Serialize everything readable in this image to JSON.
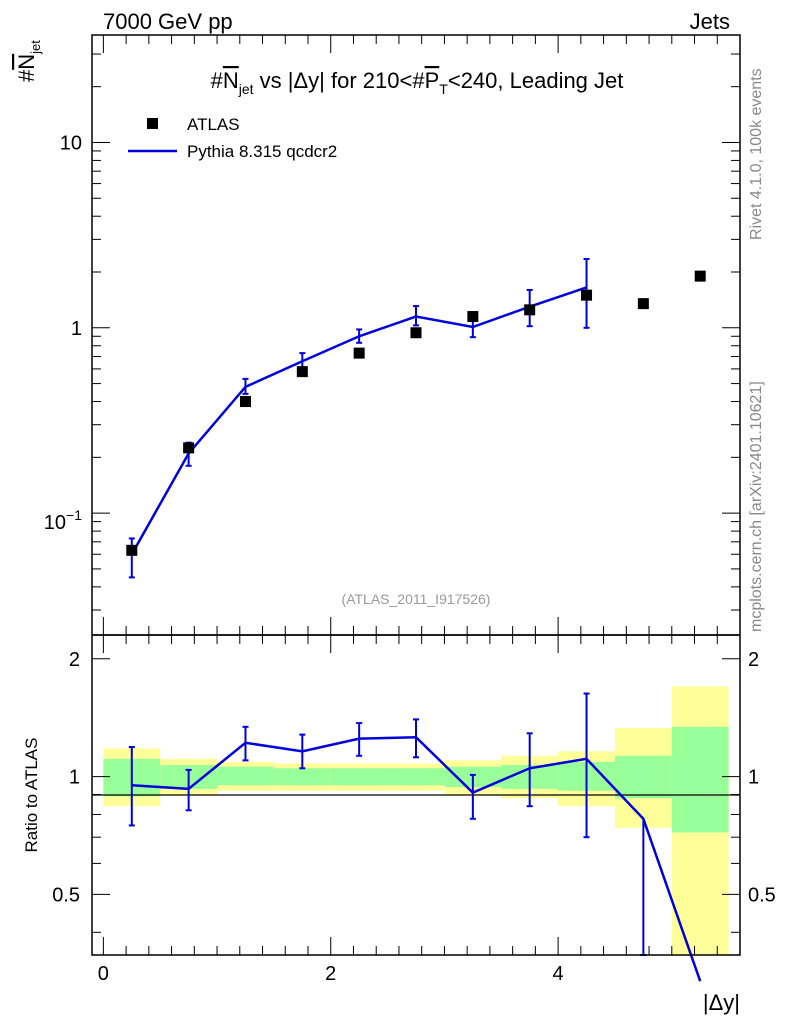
{
  "header": {
    "left": "7000 GeV pp",
    "right": "Jets"
  },
  "side": {
    "rivet": "Rivet 4.1.0,  100k events",
    "mcplots": "mcplots.cern.ch [arXiv:2401.10621]"
  },
  "main_plot": {
    "title": {
      "p1": "#",
      "p2": "N",
      "p3": "jet",
      "p4": " vs |Δy| for 210<#",
      "p5": "P",
      "p6": "T",
      "p7": "<240, Leading Jet"
    },
    "ylabel": {
      "hash": "#",
      "n": "N",
      "sub": "jet"
    },
    "watermark": "(ATLAS_2011_I917526)",
    "yticks": [
      {
        "label": "10",
        "sup": "−1"
      },
      {
        "label": "1",
        "sup": ""
      },
      {
        "label": "10",
        "sup": ""
      }
    ]
  },
  "ratio_plot": {
    "ylabel": "Ratio to ATLAS",
    "yticks": [
      "0.5",
      "1",
      "2"
    ]
  },
  "xaxis": {
    "label": "|Δy|",
    "ticks": [
      "0",
      "2",
      "4"
    ]
  },
  "colors": {
    "mc": "#0000dd",
    "band_inner": "#99ff99",
    "band_outer": "#ffff99"
  },
  "chart_data": {
    "type": "scatter",
    "title": "#N_jet vs |Δy| for 210<#P_T<240, Leading Jet",
    "xlabel": "|Δy|",
    "ylabel": "#N_jet",
    "xlim": [
      -0.1,
      5.6
    ],
    "ylim": [
      0.022,
      38
    ],
    "yscale": "log",
    "legend": {
      "position": "top-left",
      "entries": [
        "ATLAS",
        "Pythia 8.315 qcdcr2"
      ]
    },
    "series": [
      {
        "name": "ATLAS",
        "marker": "square",
        "x": [
          0.25,
          0.75,
          1.25,
          1.75,
          2.25,
          2.75,
          3.25,
          3.75,
          4.25,
          4.75,
          5.25
        ],
        "xerr": [
          0.25,
          0.25,
          0.25,
          0.25,
          0.25,
          0.25,
          0.25,
          0.25,
          0.25,
          0.25,
          0.25
        ],
        "y": [
          0.063,
          0.225,
          0.4,
          0.58,
          0.73,
          0.94,
          1.15,
          1.25,
          1.5,
          1.35,
          1.9
        ]
      },
      {
        "name": "Pythia 8.315 qcdcr2",
        "x": [
          0.25,
          0.75,
          1.25,
          1.75,
          2.25,
          2.75,
          3.25,
          3.75,
          4.25
        ],
        "y": [
          0.06,
          0.21,
          0.48,
          0.66,
          0.9,
          1.15,
          1.01,
          1.3,
          1.65
        ],
        "y_low": [
          0.045,
          0.18,
          0.44,
          0.61,
          0.83,
          1.03,
          0.89,
          1.02,
          1.0
        ],
        "y_high": [
          0.073,
          0.24,
          0.53,
          0.73,
          0.98,
          1.31,
          1.12,
          1.6,
          2.35
        ]
      }
    ],
    "ratio": {
      "ylabel": "Ratio to ATLAS",
      "ylim": [
        0.35,
        2.3
      ],
      "bins": [
        {
          "x0": 0.0,
          "x1": 0.5,
          "inner": [
            0.89,
            1.11
          ],
          "outer": [
            0.84,
            1.18
          ]
        },
        {
          "x0": 0.5,
          "x1": 1.0,
          "inner": [
            0.93,
            1.07
          ],
          "outer": [
            0.9,
            1.11
          ]
        },
        {
          "x0": 1.0,
          "x1": 1.5,
          "inner": [
            0.95,
            1.06
          ],
          "outer": [
            0.92,
            1.09
          ]
        },
        {
          "x0": 1.5,
          "x1": 2.0,
          "inner": [
            0.95,
            1.05
          ],
          "outer": [
            0.92,
            1.08
          ]
        },
        {
          "x0": 2.0,
          "x1": 2.5,
          "inner": [
            0.95,
            1.05
          ],
          "outer": [
            0.92,
            1.08
          ]
        },
        {
          "x0": 2.5,
          "x1": 3.0,
          "inner": [
            0.95,
            1.05
          ],
          "outer": [
            0.92,
            1.08
          ]
        },
        {
          "x0": 3.0,
          "x1": 3.5,
          "inner": [
            0.94,
            1.06
          ],
          "outer": [
            0.9,
            1.1
          ]
        },
        {
          "x0": 3.5,
          "x1": 4.0,
          "inner": [
            0.93,
            1.07
          ],
          "outer": [
            0.88,
            1.13
          ]
        },
        {
          "x0": 4.0,
          "x1": 4.5,
          "inner": [
            0.92,
            1.09
          ],
          "outer": [
            0.84,
            1.16
          ]
        },
        {
          "x0": 4.5,
          "x1": 5.0,
          "inner": [
            0.88,
            1.13
          ],
          "outer": [
            0.74,
            1.33
          ]
        },
        {
          "x0": 5.0,
          "x1": 5.5,
          "inner": [
            0.72,
            1.34
          ],
          "outer": [
            0.35,
            1.7
          ]
        }
      ],
      "mc": {
        "x": [
          0.25,
          0.75,
          1.25,
          1.75,
          2.25,
          2.75,
          3.25,
          3.75,
          4.25,
          4.75,
          5.25
        ],
        "y": [
          0.95,
          0.93,
          1.22,
          1.16,
          1.25,
          1.26,
          0.91,
          1.05,
          1.11,
          0.78,
          0.3
        ],
        "y_low": [
          0.75,
          0.82,
          1.1,
          1.05,
          1.13,
          1.12,
          0.78,
          0.84,
          0.7,
          0.35,
          null
        ],
        "y_high": [
          1.19,
          1.04,
          1.34,
          1.28,
          1.37,
          1.4,
          1.01,
          1.29,
          1.63,
          null,
          null
        ]
      }
    }
  }
}
